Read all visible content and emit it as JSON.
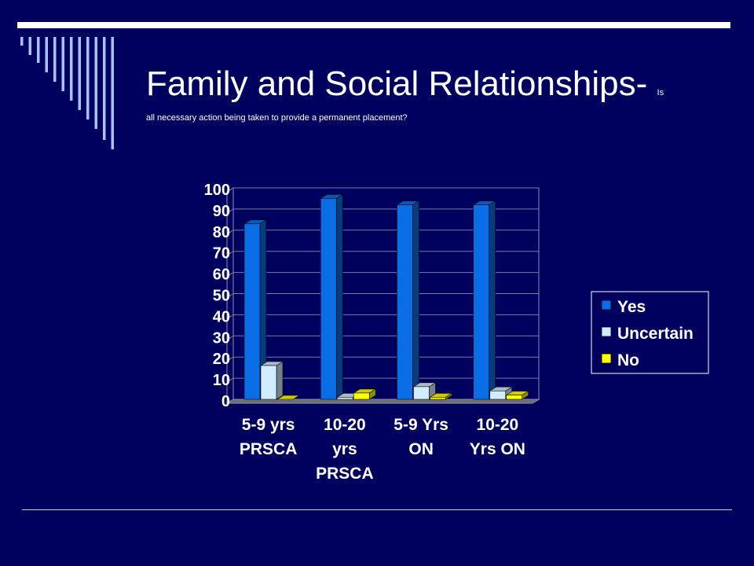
{
  "slide": {
    "title_main": "Family and Social Relationships-",
    "title_tail": "Is",
    "subtitle": "all necessary action being taken to provide a permanent placement?"
  },
  "colors": {
    "background": "#00005e",
    "yes": "#0a6ee6",
    "uncertain": "#d2ecff",
    "no": "#ffff00",
    "stripe": "#a7c3ff"
  },
  "chart_data": {
    "type": "bar",
    "categories": [
      [
        "5-9 yrs",
        "PRSCA"
      ],
      [
        "10-20",
        "yrs",
        "PRSCA"
      ],
      [
        "5-9 Yrs",
        "ON"
      ],
      [
        "10-20",
        "Yrs ON"
      ]
    ],
    "series": [
      {
        "name": "Yes",
        "values": [
          83,
          95,
          92,
          92
        ]
      },
      {
        "name": "Uncertain",
        "values": [
          16,
          1,
          6,
          4
        ]
      },
      {
        "name": "No",
        "values": [
          0,
          3,
          1,
          2
        ]
      }
    ],
    "ylim": [
      0,
      100
    ],
    "yticks": [
      0,
      10,
      20,
      30,
      40,
      50,
      60,
      70,
      80,
      90,
      100
    ],
    "grid": true,
    "legend_position": "right"
  }
}
